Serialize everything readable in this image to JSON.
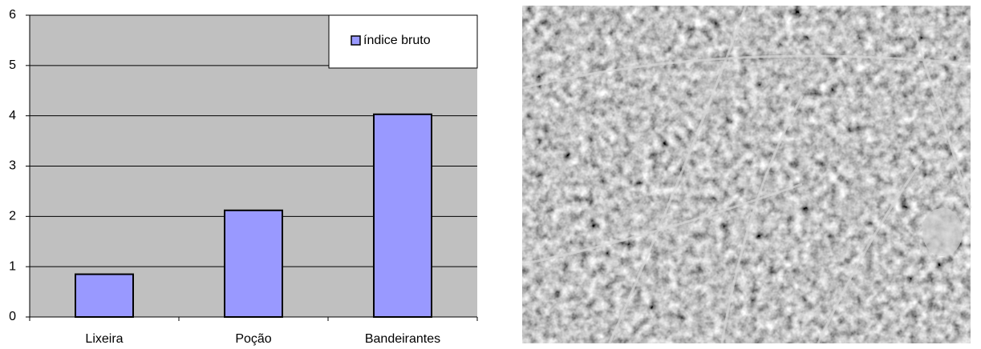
{
  "chart_data": {
    "type": "bar",
    "categories": [
      "Lixeira",
      "Poção",
      "Bandeirantes"
    ],
    "series": [
      {
        "name": "índice bruto",
        "color": "#9999ff",
        "values": [
          0.85,
          2.12,
          4.03
        ]
      }
    ],
    "ylim": [
      0,
      6
    ],
    "yticks": [
      0,
      1,
      2,
      3,
      4,
      5,
      6
    ],
    "grid": true,
    "legend": "upper right"
  }
}
